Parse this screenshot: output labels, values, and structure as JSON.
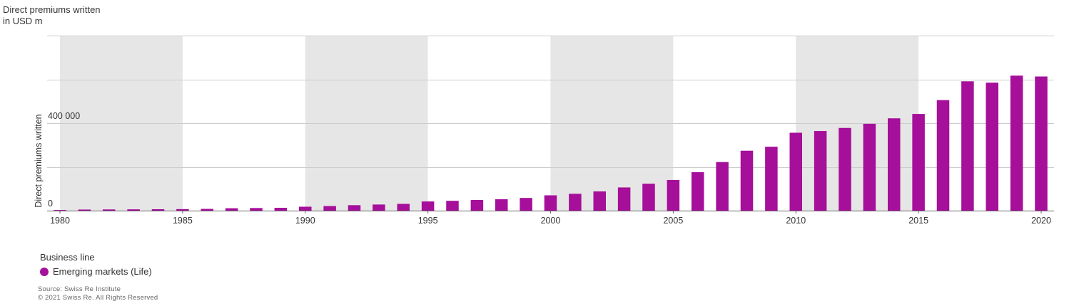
{
  "chart_data": {
    "type": "bar",
    "title": "",
    "unit_label": [
      "Direct premiums written",
      "in USD m"
    ],
    "ylabel": "Direct premiums written",
    "xlabel": "",
    "ylim": [
      0,
      800000
    ],
    "y_ticks_labeled": [
      {
        "value": 0,
        "label": "0"
      },
      {
        "value": 400000,
        "label": "400 000"
      }
    ],
    "gridlines": [
      0,
      200000,
      400000,
      600000,
      800000
    ],
    "x_tick_labels": [
      "1980",
      "1985",
      "1990",
      "1995",
      "2000",
      "2005",
      "2010",
      "2015",
      "2020"
    ],
    "shaded_periods": [
      [
        1980,
        1985
      ],
      [
        1990,
        1995
      ],
      [
        2000,
        2005
      ],
      [
        2010,
        2015
      ]
    ],
    "x": [
      1980,
      1981,
      1982,
      1983,
      1984,
      1985,
      1986,
      1987,
      1988,
      1989,
      1990,
      1991,
      1992,
      1993,
      1994,
      1995,
      1996,
      1997,
      1998,
      1999,
      2000,
      2001,
      2002,
      2003,
      2004,
      2005,
      2006,
      2007,
      2008,
      2009,
      2010,
      2011,
      2012,
      2013,
      2014,
      2015,
      2016,
      2017,
      2018,
      2019,
      2020
    ],
    "series": [
      {
        "name": "Emerging markets (Life)",
        "color": "#a50f99",
        "values": [
          3000,
          5000,
          5500,
          6000,
          6500,
          7000,
          8000,
          11000,
          12000,
          13000,
          18000,
          21000,
          25000,
          28000,
          31000,
          42000,
          45000,
          49000,
          52000,
          58000,
          70000,
          77000,
          88000,
          106000,
          123000,
          140000,
          176000,
          222000,
          274000,
          292000,
          356000,
          364000,
          378000,
          397000,
          422000,
          442000,
          505000,
          591000,
          585000,
          617000,
          613000
        ]
      }
    ],
    "legend": {
      "title": "Business line",
      "placement": "bottom-left"
    },
    "grid": true
  },
  "footer": {
    "source": "Source: Swiss Re Institute",
    "copyright": "© 2021 Swiss Re. All Rights Reserved"
  },
  "colors": {
    "bar": "#a50f99",
    "shade": "#e6e6e6",
    "grid": "#cccccc",
    "axis": "#666666"
  }
}
